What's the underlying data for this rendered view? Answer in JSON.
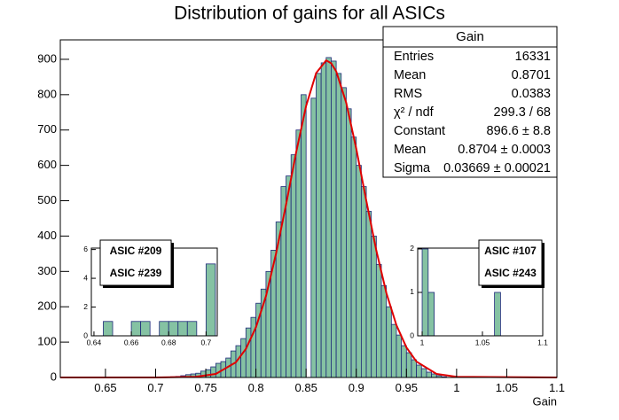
{
  "chart_data": [
    {
      "type": "histogram",
      "title": "Distribution of gains for all ASICs",
      "xlabel": "Gain",
      "color": "#85c2a3",
      "edgecolor": "#1f2a7a",
      "bins": [
        0.715,
        0.72,
        0.725,
        0.73,
        0.735,
        0.74,
        0.745,
        0.75,
        0.755,
        0.76,
        0.765,
        0.77,
        0.775,
        0.78,
        0.785,
        0.79,
        0.795,
        0.8,
        0.805,
        0.81,
        0.815,
        0.82,
        0.825,
        0.83,
        0.835,
        0.84,
        0.845,
        0.85,
        0.855,
        0.86,
        0.865,
        0.87,
        0.875,
        0.88,
        0.885,
        0.89,
        0.895,
        0.9,
        0.905,
        0.91,
        0.915,
        0.92,
        0.925,
        0.93,
        0.935,
        0.94,
        0.945,
        0.95,
        0.955,
        0.96,
        0.965,
        0.97,
        0.975,
        0.98,
        0.985,
        0.99
      ],
      "values": [
        2,
        3,
        5,
        8,
        10,
        12,
        18,
        22,
        30,
        40,
        45,
        55,
        75,
        90,
        110,
        140,
        170,
        210,
        250,
        300,
        360,
        440,
        540,
        570,
        630,
        700,
        800,
        0,
        790,
        860,
        890,
        905,
        895,
        860,
        820,
        760,
        680,
        600,
        540,
        470,
        400,
        320,
        260,
        200,
        150,
        120,
        90,
        70,
        50,
        35,
        25,
        15,
        10,
        5,
        2
      ],
      "xlim": [
        0.605,
        1.1
      ],
      "ylim": [
        0,
        955
      ],
      "xticks": [
        0.65,
        0.7,
        0.75,
        0.8,
        0.85,
        0.9,
        0.95,
        1,
        1.05,
        1.1
      ],
      "yticks": [
        0,
        100,
        200,
        300,
        400,
        500,
        600,
        700,
        800,
        900
      ],
      "fit": {
        "color": "#e00000",
        "x": [
          0.605,
          0.7,
          0.74,
          0.76,
          0.78,
          0.79,
          0.8,
          0.81,
          0.82,
          0.83,
          0.84,
          0.85,
          0.86,
          0.87,
          0.875,
          0.88,
          0.89,
          0.9,
          0.91,
          0.92,
          0.93,
          0.94,
          0.95,
          0.96,
          0.98,
          1.0,
          1.1
        ],
        "y": [
          0,
          0,
          2,
          10,
          43,
          81,
          142,
          230,
          350,
          489,
          636,
          768,
          861,
          897,
          889,
          866,
          777,
          647,
          500,
          359,
          239,
          148,
          85,
          45,
          10,
          2,
          0
        ]
      },
      "stats": {
        "title": "Gain",
        "rows": [
          [
            "Entries",
            "16331"
          ],
          [
            "Mean",
            "0.8701"
          ],
          [
            "RMS",
            "0.0383"
          ],
          [
            "χ² / ndf",
            "299.3 / 68"
          ],
          [
            "Constant",
            "896.6 ± 8.8"
          ],
          [
            "Mean",
            "0.8704 ± 0.0003"
          ],
          [
            "Sigma",
            "0.03669 ± 0.00021"
          ]
        ]
      }
    },
    {
      "type": "histogram",
      "color": "#85c2a3",
      "edgecolor": "#1f2a7a",
      "labels": [
        "ASIC #209",
        "ASIC #239"
      ],
      "bins": [
        0.64,
        0.645,
        0.65,
        0.655,
        0.66,
        0.665,
        0.67,
        0.675,
        0.68,
        0.685,
        0.69,
        0.695,
        0.7,
        0.705
      ],
      "values": [
        0,
        1,
        0,
        0,
        1,
        1,
        0,
        1,
        1,
        1,
        1,
        0,
        5
      ],
      "xlim": [
        0.6386,
        0.706
      ],
      "ylim": [
        0,
        6.1
      ],
      "xticks": [
        0.64,
        0.66,
        0.68,
        0.7
      ],
      "yticks": [
        0,
        2,
        4,
        6
      ]
    },
    {
      "type": "histogram",
      "color": "#85c2a3",
      "edgecolor": "#1f2a7a",
      "labels": [
        "ASIC #107",
        "ASIC #243"
      ],
      "bins": [
        1,
        1.005,
        1.01,
        1.015,
        1.02,
        1.025,
        1.03,
        1.035,
        1.04,
        1.045,
        1.05,
        1.055,
        1.06,
        1.065
      ],
      "values": [
        2,
        1,
        0,
        0,
        0,
        0,
        0,
        0,
        0,
        0,
        0,
        0,
        1
      ],
      "xlim": [
        0.9963,
        1.1
      ],
      "ylim": [
        0,
        2.02
      ],
      "xticks": [
        1,
        1.05,
        1.1
      ],
      "yticks": [
        0,
        1,
        2
      ]
    }
  ]
}
